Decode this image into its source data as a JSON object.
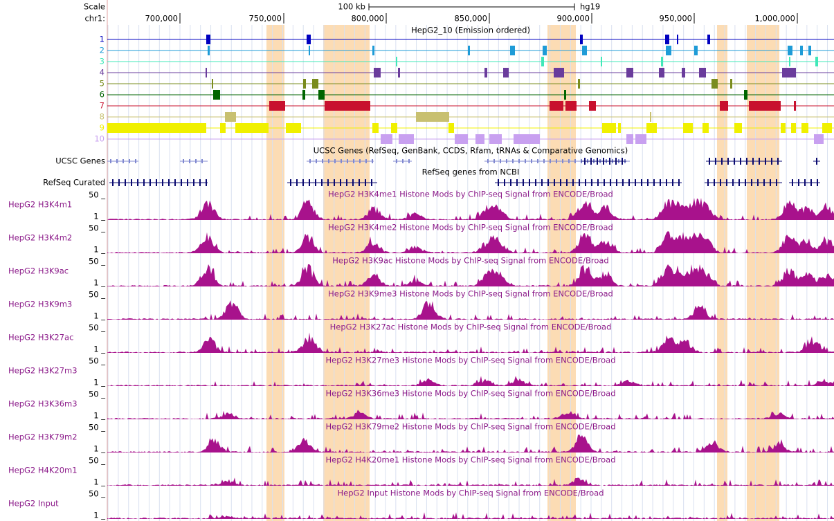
{
  "scale": {
    "label": "Scale",
    "size": "100 kb",
    "assembly": "hg19"
  },
  "ruler": {
    "chrom": "chr1:",
    "ticks": [
      "700,000",
      "750,000",
      "800,000",
      "850,000",
      "900,000",
      "950,000",
      "1,000,000"
    ]
  },
  "chromhmm": {
    "title": "HepG2_10 (Emission ordered)",
    "states": [
      "1",
      "2",
      "3",
      "4",
      "5",
      "6",
      "7",
      "8",
      "9",
      "10"
    ]
  },
  "genes": [
    {
      "name": "UCSC Genes",
      "title": "UCSC Genes (RefSeq, GenBank, CCDS, Rfam, tRNAs & Comparative Genomics)"
    },
    {
      "name": "RefSeq Curated",
      "title": "RefSeq genes from NCBI"
    }
  ],
  "signal_tracks": [
    {
      "name": "HepG2 H3K4m1",
      "title": "HepG2 H3K4me1 Histone Mods by ChIP-seq Signal from ENCODE/Broad",
      "max": "50 _",
      "min": "1 _"
    },
    {
      "name": "HepG2 H3K4m2",
      "title": "HepG2 H3K4me2 Histone Mods by ChIP-seq Signal from ENCODE/Broad",
      "max": "50 _",
      "min": "1 _"
    },
    {
      "name": "HepG2 H3K9ac",
      "title": "HepG2 H3K9ac Histone Mods by ChIP-seq Signal from ENCODE/Broad",
      "max": "50 _",
      "min": "1 _"
    },
    {
      "name": "HepG2 H3K9m3",
      "title": "HepG2 H3K9me3 Histone Mods by ChIP-seq Signal from ENCODE/Broad",
      "max": "50 _",
      "min": "1 _"
    },
    {
      "name": "HepG2 H3K27ac",
      "title": "HepG2 H3K27ac Histone Mods by ChIP-seq Signal from ENCODE/Broad",
      "max": "50 _",
      "min": "1 _"
    },
    {
      "name": "HepG2 H3K27m3",
      "title": "HepG2 H3K27me3 Histone Mods by ChIP-seq Signal from ENCODE/Broad",
      "max": "50 _",
      "min": "1 _"
    },
    {
      "name": "HepG2 H3K36m3",
      "title": "HepG2 H3K36me3 Histone Mods by ChIP-seq Signal from ENCODE/Broad",
      "max": "50 _",
      "min": "1 _"
    },
    {
      "name": "HepG2 H3K79m2",
      "title": "HepG2 H3K79me2 Histone Mods by ChIP-seq Signal from ENCODE/Broad",
      "max": "50 _",
      "min": "1 _"
    },
    {
      "name": "HepG2 H4K20m1",
      "title": "HepG2 H4K20me1 Histone Mods by ChIP-seq Signal from ENCODE/Broad",
      "max": "50 _",
      "min": "1 _"
    },
    {
      "name": "HepG2 Input",
      "title": "HepG2 Input Histone Mods by ChIP-seq Signal from ENCODE/Broad",
      "max": "50 _",
      "min": "1 _"
    }
  ]
}
